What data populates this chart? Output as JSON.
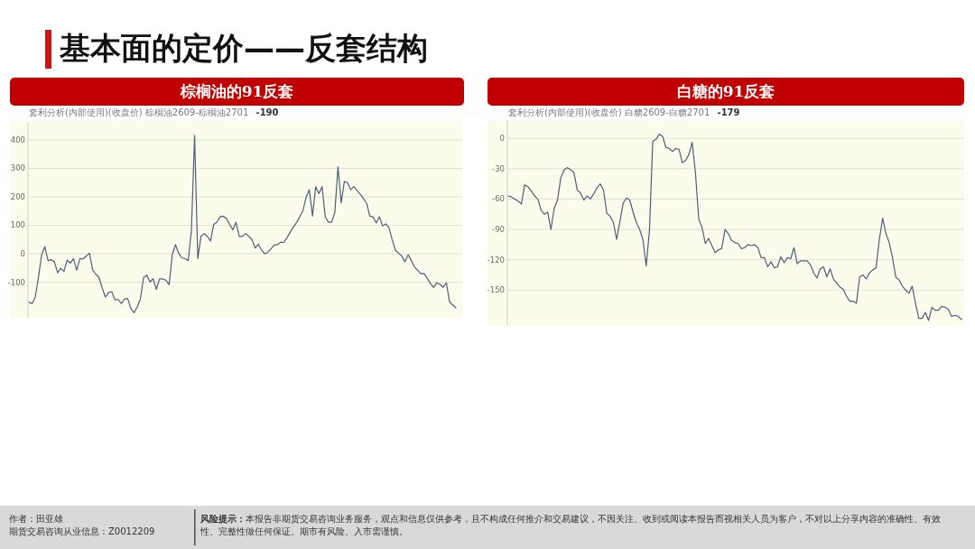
{
  "chart_data": [
    {
      "type": "other",
      "title": "基本面的定价——反套结构"
    },
    {
      "type": "line",
      "title": "棕榈油的91反套",
      "subtitle": "套利分析(内部使用)(收盘价) 棕榈油2609-棕榈油2701 **-190**",
      "categories": [
        null,
        null,
        null,
        null,
        null,
        null,
        null,
        null,
        null,
        null,
        null,
        null,
        null,
        null,
        null,
        null,
        null,
        null,
        null,
        null,
        null,
        null,
        null,
        null,
        null,
        null,
        null,
        null,
        null,
        null,
        null,
        null,
        null,
        null,
        null,
        null,
        null,
        null,
        null,
        null,
        null,
        null,
        null,
        null,
        null,
        null,
        null,
        null,
        null,
        null,
        null,
        null,
        null,
        null,
        null,
        null,
        null,
        null,
        null,
        null,
        null,
        null,
        null,
        null,
        null,
        null,
        null,
        null,
        null,
        null,
        null,
        null,
        null,
        null,
        null,
        null,
        null,
        null,
        null,
        null,
        null,
        null,
        null,
        null,
        null,
        null,
        null,
        null,
        null,
        null,
        null,
        null,
        null,
        null,
        null,
        null,
        null,
        null,
        null,
        null,
        null,
        null,
        null,
        null,
        null,
        null,
        null,
        null,
        null,
        null,
        null,
        null,
        null,
        null,
        null,
        null,
        null,
        null,
        null,
        null,
        null,
        null,
        null,
        null,
        null,
        null,
        null,
        null,
        null,
        null,
        null,
        null,
        null,
        null,
        null
      ],
      "values": [
        -170,
        -175,
        -152,
        -83,
        -3,
        25,
        -24,
        -21,
        -28,
        -67,
        -51,
        -62,
        -22,
        -33,
        -17,
        -58,
        -17,
        -18,
        -8,
        2,
        -56,
        -72,
        -83,
        -120,
        -152,
        -136,
        -133,
        -162,
        -160,
        -175,
        -159,
        -157,
        -192,
        -207,
        -187,
        -159,
        -83,
        -75,
        -99,
        -88,
        -125,
        -88,
        -88,
        -93,
        -109,
        -3,
        32,
        2,
        -14,
        -17,
        -24,
        82,
        416,
        -17,
        61,
        71,
        61,
        45,
        103,
        111,
        130,
        132,
        124,
        103,
        84,
        111,
        61,
        61,
        71,
        61,
        50,
        20,
        34,
        13,
        0,
        5,
        18,
        31,
        32,
        41,
        39,
        57,
        76,
        94,
        110,
        130,
        151,
        199,
        225,
        132,
        236,
        211,
        236,
        130,
        111,
        111,
        145,
        305,
        179,
        254,
        249,
        225,
        236,
        222,
        209,
        193,
        177,
        132,
        130,
        108,
        130,
        98,
        105,
        92,
        50,
        13,
        2,
        -8,
        -28,
        -3,
        -24,
        -46,
        -58,
        -70,
        -69,
        -86,
        -104,
        -118,
        -102,
        -107,
        -118,
        -102,
        -168,
        -180,
        -190
      ],
      "color": "#4f5f78",
      "ylim": [
        -225,
        460
      ],
      "yticks": [
        -100,
        0,
        100,
        200,
        300,
        400
      ],
      "grid": "y",
      "tick_labels": "y"
    },
    {
      "type": "line",
      "title": "白糖的91反套",
      "subtitle": "套利分析(内部使用)(收盘价) 白糖2609-白糖2701 **-179**",
      "categories": [
        null,
        null,
        null,
        null,
        null,
        null,
        null,
        null,
        null,
        null,
        null,
        null,
        null,
        null,
        null,
        null,
        null,
        null,
        null,
        null,
        null,
        null,
        null,
        null,
        null,
        null,
        null,
        null,
        null,
        null,
        null,
        null,
        null,
        null,
        null,
        null,
        null,
        null,
        null,
        null,
        null,
        null,
        null,
        null,
        null,
        null,
        null,
        null,
        null,
        null,
        null,
        null,
        null,
        null,
        null,
        null,
        null,
        null,
        null,
        null,
        null,
        null,
        null,
        null,
        null,
        null,
        null,
        null,
        null,
        null,
        null,
        null,
        null,
        null,
        null,
        null,
        null,
        null,
        null,
        null,
        null,
        null,
        null,
        null,
        null,
        null,
        null,
        null,
        null,
        null,
        null,
        null,
        null,
        null,
        null,
        null,
        null,
        null,
        null,
        null,
        null,
        null,
        null,
        null,
        null,
        null,
        null,
        null,
        null,
        null,
        null,
        null,
        null,
        null,
        null,
        null,
        null,
        null,
        null,
        null,
        null,
        null,
        null,
        null,
        null,
        null,
        null,
        null,
        null,
        null,
        null,
        null,
        null,
        null,
        null,
        null,
        null,
        null,
        null
      ],
      "values": [
        -57,
        -58,
        -60,
        -62,
        -65,
        -46,
        -48,
        -52,
        -57,
        -60,
        -71,
        -75,
        -73,
        -90,
        -69,
        -61,
        -39,
        -31,
        -29,
        -31,
        -34,
        -51,
        -54,
        -61,
        -57,
        -60,
        -55,
        -49,
        -45,
        -51,
        -74,
        -77,
        -83,
        -100,
        -82,
        -64,
        -59,
        -61,
        -73,
        -83,
        -90,
        -100,
        -126,
        -91,
        -3,
        -1,
        4,
        2,
        -9,
        -10,
        -13,
        -10,
        -11,
        -24,
        -22,
        -16,
        -4,
        -34,
        -80,
        -88,
        -104,
        -99,
        -106,
        -113,
        -110,
        -109,
        -90,
        -94,
        -101,
        -103,
        -104,
        -109,
        -108,
        -105,
        -106,
        -105,
        -108,
        -118,
        -118,
        -127,
        -122,
        -128,
        -127,
        -117,
        -123,
        -118,
        -119,
        -108,
        -124,
        -121,
        -121,
        -121,
        -125,
        -133,
        -138,
        -129,
        -127,
        -137,
        -129,
        -139,
        -143,
        -147,
        -149,
        -156,
        -161,
        -161,
        -163,
        -137,
        -135,
        -139,
        -133,
        -130,
        -128,
        -100,
        -79,
        -94,
        -103,
        -118,
        -137,
        -140,
        -146,
        -150,
        -153,
        -146,
        -163,
        -178,
        -178,
        -172,
        -180,
        -167,
        -170,
        -170,
        -166,
        -167,
        -169,
        -176,
        -175,
        -176,
        -179
      ],
      "color": "#4f5f78",
      "ylim": [
        -185,
        18
      ],
      "yticks": [
        -150,
        -120,
        -90,
        -60,
        -30,
        0
      ],
      "grid": "y",
      "tick_labels": "y"
    },
    {
      "type": "other",
      "annotations": [
        "作者：田亚雄",
        "期货交易咨询从业信息：Z0012209",
        "**风险提示：**本报告非期货交易咨询业务服务，观点和信息仅供参考，且不构成任何推介和交易建议，不因关注、收到或阅读本报告而视相关人员为客户，不对以上分享内容的准确性、有效性、完整性做任何保证。期市有风险、入市需谨慎。"
      ]
    }
  ]
}
